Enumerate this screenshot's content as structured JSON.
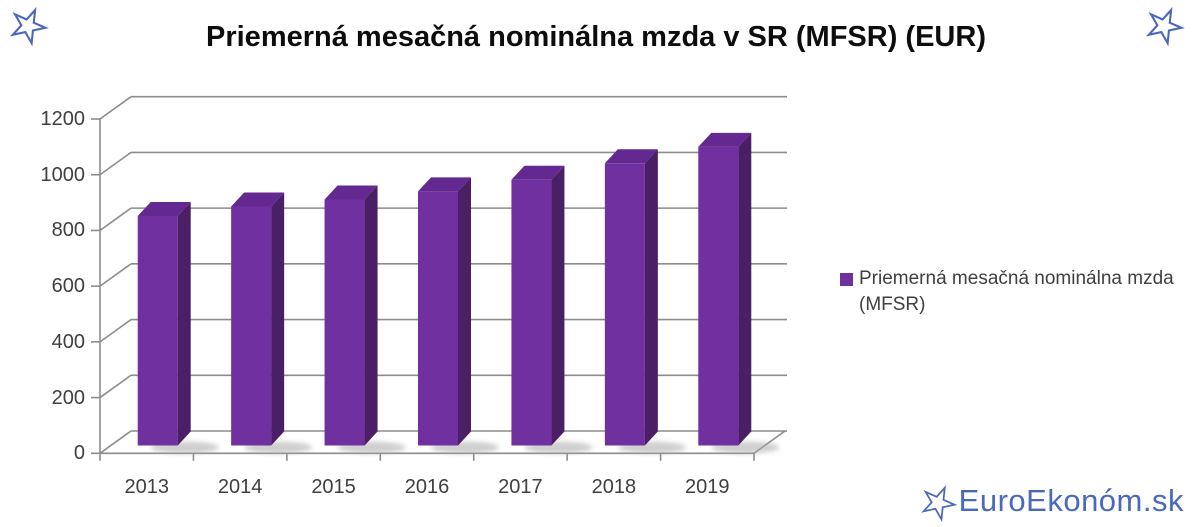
{
  "title": "Priemerná mesačná nominálna mzda v SR (MFSR) (EUR)",
  "legend": {
    "marker_color": "#7030A0",
    "line1": "Priemerná mesačná nominálna mzda",
    "line2": "(MFSR)"
  },
  "watermark": {
    "text": "EuroEkonóm.sk",
    "color": "#4A69BD"
  },
  "icons": {
    "corner_star_left": "star-outline",
    "corner_star_right": "star-outline",
    "watermark_star": "star-outline",
    "star_color": "#4A69BD"
  },
  "chart_data": {
    "type": "bar",
    "style": "3d-column",
    "title": "Priemerná mesačná nominálna mzda v SR (MFSR) (EUR)",
    "categories": [
      "2013",
      "2014",
      "2015",
      "2016",
      "2017",
      "2018",
      "2019"
    ],
    "series": [
      {
        "name": "Priemerná mesačná nominálna mzda (MFSR)",
        "values": [
          824,
          858,
          883,
          912,
          954,
          1013,
          1072
        ]
      }
    ],
    "xlabel": "",
    "ylabel": "",
    "ylim": [
      0,
      1200
    ],
    "yticks": [
      0,
      200,
      400,
      600,
      800,
      1000,
      1200
    ],
    "grid": true,
    "legend_position": "right",
    "colors": {
      "bar_front": "#7030A0",
      "bar_top": "#642990",
      "bar_side": "#4A1F66",
      "gridline": "#8C8C8C",
      "axis_label": "#3F3F3F"
    }
  }
}
